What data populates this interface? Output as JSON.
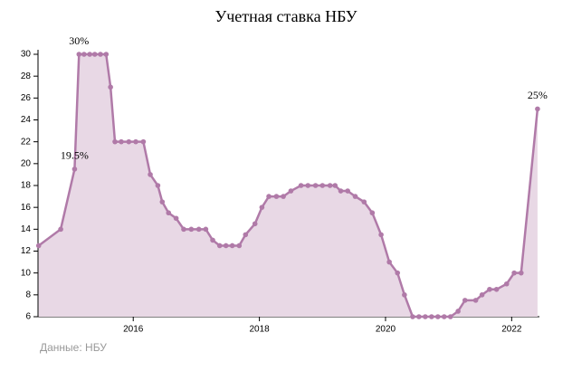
{
  "chart_data": {
    "type": "area",
    "title": "Учетная ставка НБУ",
    "source": "Данные: НБУ",
    "x": [
      2014.5,
      2014.85,
      2015.07,
      2015.14,
      2015.22,
      2015.31,
      2015.39,
      2015.48,
      2015.57,
      2015.64,
      2015.71,
      2015.81,
      2015.93,
      2016.04,
      2016.16,
      2016.27,
      2016.39,
      2016.46,
      2016.56,
      2016.68,
      2016.8,
      2016.92,
      2017.04,
      2017.15,
      2017.26,
      2017.37,
      2017.47,
      2017.57,
      2017.68,
      2017.78,
      2017.93,
      2018.04,
      2018.15,
      2018.27,
      2018.38,
      2018.5,
      2018.66,
      2018.77,
      2018.89,
      2019.0,
      2019.12,
      2019.2,
      2019.29,
      2019.4,
      2019.52,
      2019.66,
      2019.79,
      2019.93,
      2020.06,
      2020.19,
      2020.3,
      2020.43,
      2020.53,
      2020.63,
      2020.73,
      2020.83,
      2020.93,
      2021.03,
      2021.15,
      2021.26,
      2021.43,
      2021.53,
      2021.65,
      2021.76,
      2021.92,
      2022.04,
      2022.15,
      2022.41
    ],
    "values": [
      12.5,
      14,
      19.5,
      30,
      30,
      30,
      30,
      30,
      30,
      27,
      22,
      22,
      22,
      22,
      22,
      19,
      18,
      16.5,
      15.5,
      15,
      14,
      14,
      14,
      14,
      13,
      12.5,
      12.5,
      12.5,
      12.5,
      13.5,
      14.5,
      16,
      17,
      17,
      17,
      17.5,
      18,
      18,
      18,
      18,
      18,
      18,
      17.5,
      17.5,
      17,
      16.5,
      15.5,
      13.5,
      11,
      10,
      8,
      6,
      6,
      6,
      6,
      6,
      6,
      6,
      6.5,
      7.5,
      7.5,
      8,
      8.5,
      8.5,
      9,
      10,
      10,
      25
    ],
    "value_labels": [
      null,
      null,
      "19.5%",
      "30%",
      null,
      null,
      null,
      null,
      null,
      null,
      null,
      null,
      null,
      null,
      null,
      null,
      null,
      null,
      null,
      null,
      null,
      null,
      null,
      null,
      null,
      null,
      null,
      null,
      null,
      null,
      null,
      null,
      null,
      null,
      null,
      null,
      null,
      null,
      null,
      null,
      null,
      null,
      null,
      null,
      null,
      null,
      null,
      null,
      null,
      null,
      null,
      null,
      null,
      null,
      null,
      null,
      null,
      null,
      null,
      null,
      null,
      null,
      null,
      null,
      null,
      null,
      null,
      "25%"
    ],
    "color": "#b07aa8",
    "fill": "#e8d8e5",
    "xlim": [
      2014.49,
      2022.44
    ],
    "xticks": [
      2016,
      2018,
      2020,
      2022
    ],
    "ylim": [
      6,
      30
    ],
    "yticks": [
      6,
      8,
      10,
      12,
      14,
      16,
      18,
      20,
      22,
      24,
      26,
      28,
      30
    ]
  }
}
